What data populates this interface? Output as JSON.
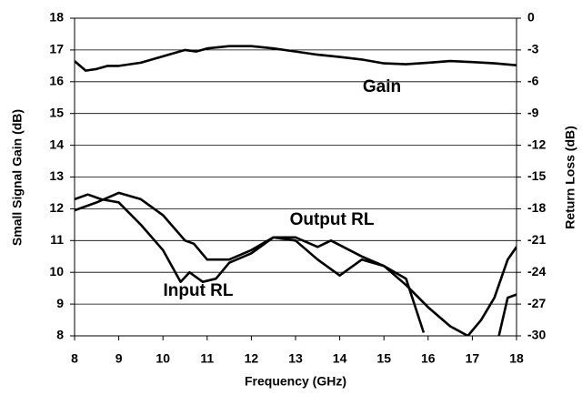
{
  "chart_data": {
    "type": "line",
    "xlabel": "Frequency (GHz)",
    "ylabel": "Small Signal Gain (dB)",
    "y2label": "Return Loss (dB)",
    "xlim": [
      8,
      18
    ],
    "xticks": [
      8,
      9,
      10,
      11,
      12,
      13,
      14,
      15,
      16,
      17,
      18
    ],
    "ylim": [
      8,
      18
    ],
    "yticks": [
      8,
      9,
      10,
      11,
      12,
      13,
      14,
      15,
      16,
      17,
      18
    ],
    "y2lim": [
      -30,
      0
    ],
    "y2ticks": [
      -30,
      -27,
      -24,
      -21,
      -18,
      -15,
      -12,
      -9,
      -6,
      -3,
      0
    ],
    "grid": true,
    "annotations": [
      "Gain",
      "Output RL",
      "Input RL"
    ],
    "series": [
      {
        "name": "Gain",
        "color": "#000000",
        "x": [
          8,
          8.25,
          8.5,
          8.75,
          9,
          9.5,
          10,
          10.5,
          10.75,
          11,
          11.5,
          12,
          12.5,
          13,
          13.5,
          14,
          14.5,
          15,
          15.5,
          16,
          16.5,
          17,
          17.5,
          18
        ],
        "values": [
          16.65,
          16.35,
          16.4,
          16.5,
          16.5,
          16.6,
          16.8,
          17.0,
          16.95,
          17.05,
          17.12,
          17.12,
          17.05,
          16.95,
          16.85,
          16.78,
          16.7,
          16.58,
          16.55,
          16.6,
          16.65,
          16.62,
          16.58,
          16.52
        ]
      },
      {
        "name": "Output RL",
        "color": "#000000",
        "axis": "y2",
        "x": [
          8,
          8.5,
          9,
          9.5,
          10,
          10.5,
          10.7,
          11,
          11.5,
          12,
          12.5,
          13,
          13.5,
          13.8,
          14.5,
          15,
          15.5,
          16,
          16.5,
          16.9,
          17.2,
          17.5,
          17.8,
          18
        ],
        "values": [
          -18.15,
          -17.4,
          -16.5,
          -17.1,
          -18.6,
          -21,
          -21.3,
          -22.8,
          -22.8,
          -21.9,
          -20.7,
          -20.7,
          -21.6,
          -21,
          -22.5,
          -23.4,
          -25.2,
          -27.3,
          -29.1,
          -30,
          -28.5,
          -26.4,
          -22.8,
          -21.6
        ]
      },
      {
        "name": "Input RL",
        "color": "#000000",
        "axis": "y2",
        "x": [
          8,
          8.3,
          8.6,
          9,
          9.5,
          10,
          10.4,
          10.6,
          10.9,
          11.2,
          11.5,
          12,
          12.5,
          13,
          13.5,
          14,
          14.5,
          15,
          15.5,
          15.9,
          16.2,
          17.6,
          17.8,
          18
        ],
        "values": [
          -17.1,
          -16.65,
          -17.1,
          -17.4,
          -19.5,
          -21.9,
          -24.9,
          -24,
          -24.9,
          -24.6,
          -23.1,
          -22.2,
          -20.7,
          -21,
          -22.8,
          -24.3,
          -22.8,
          -23.4,
          -24.6,
          -29.7,
          null,
          -30,
          -26.4,
          -26.1
        ]
      }
    ]
  }
}
